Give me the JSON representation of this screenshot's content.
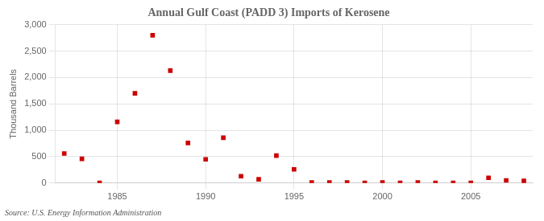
{
  "chart_data": {
    "type": "scatter",
    "title": "Annual Gulf Coast (PADD 3) Imports of Kerosene",
    "y_label": "Thousand Barrels",
    "source": "Source: U.S. Energy Information Administration",
    "x": [
      1982,
      1983,
      1984,
      1985,
      1986,
      1987,
      1988,
      1989,
      1990,
      1991,
      1992,
      1993,
      1994,
      1995,
      1996,
      1997,
      1998,
      1999,
      2000,
      2001,
      2002,
      2003,
      2004,
      2005,
      2006,
      2007,
      2008
    ],
    "values": [
      560,
      460,
      5,
      1160,
      1700,
      2800,
      2130,
      760,
      450,
      860,
      130,
      70,
      520,
      260,
      10,
      10,
      10,
      5,
      10,
      5,
      10,
      5,
      5,
      5,
      100,
      50,
      40
    ],
    "color": "#cc0000",
    "marker": "square",
    "xlim": [
      1981.5,
      2008.5
    ],
    "xticks": [
      1985,
      1990,
      1995,
      2000,
      2005
    ],
    "ylim": [
      0,
      3000
    ],
    "yticks": [
      0,
      500,
      {
        "value": 1000,
        "label": "1,000"
      },
      {
        "value": 1500,
        "label": "1,500"
      },
      {
        "value": 2000,
        "label": "2,000"
      },
      {
        "value": 2500,
        "label": "2,500"
      },
      {
        "value": 3000,
        "label": "3,000"
      }
    ],
    "grid": true
  }
}
